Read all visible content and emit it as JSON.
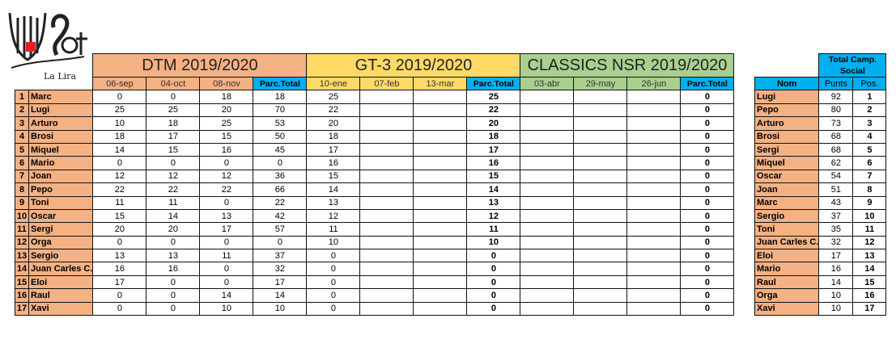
{
  "logo": {
    "text": "Spot",
    "subtitle": "La Lira"
  },
  "colors": {
    "dtm": "#f4b183",
    "gt3": "#ffd966",
    "classics": "#a9d08e",
    "total": "#00b0f0"
  },
  "championships": [
    {
      "title": "DTM 2019/2020",
      "dates": [
        "06-sep",
        "04-oct",
        "08-nov"
      ],
      "total_label": "Parc.Total"
    },
    {
      "title": "GT-3  2019/2020",
      "dates": [
        "10-ene",
        "07-feb",
        "13-mar"
      ],
      "total_label": "Parc.Total"
    },
    {
      "title": "CLASSICS NSR 2019/2020",
      "dates": [
        "03-abr",
        "29-may",
        "26-jun"
      ],
      "total_label": "Parc.Total"
    }
  ],
  "rows": [
    {
      "rank": "1",
      "name": "Marc",
      "dtm": [
        "0",
        "0",
        "18",
        "18"
      ],
      "gt3": [
        "25",
        "",
        "",
        "25"
      ],
      "cl": [
        "",
        "",
        "",
        "0"
      ]
    },
    {
      "rank": "2",
      "name": "Lugi",
      "dtm": [
        "25",
        "25",
        "20",
        "70"
      ],
      "gt3": [
        "22",
        "",
        "",
        "22"
      ],
      "cl": [
        "",
        "",
        "",
        "0"
      ]
    },
    {
      "rank": "3",
      "name": "Arturo",
      "dtm": [
        "10",
        "18",
        "25",
        "53"
      ],
      "gt3": [
        "20",
        "",
        "",
        "20"
      ],
      "cl": [
        "",
        "",
        "",
        "0"
      ]
    },
    {
      "rank": "4",
      "name": "Brosi",
      "dtm": [
        "18",
        "17",
        "15",
        "50"
      ],
      "gt3": [
        "18",
        "",
        "",
        "18"
      ],
      "cl": [
        "",
        "",
        "",
        "0"
      ]
    },
    {
      "rank": "5",
      "name": "Miquel",
      "dtm": [
        "14",
        "15",
        "16",
        "45"
      ],
      "gt3": [
        "17",
        "",
        "",
        "17"
      ],
      "cl": [
        "",
        "",
        "",
        "0"
      ]
    },
    {
      "rank": "6",
      "name": "Mario",
      "dtm": [
        "0",
        "0",
        "0",
        "0"
      ],
      "gt3": [
        "16",
        "",
        "",
        "16"
      ],
      "cl": [
        "",
        "",
        "",
        "0"
      ]
    },
    {
      "rank": "7",
      "name": "Joan",
      "dtm": [
        "12",
        "12",
        "12",
        "36"
      ],
      "gt3": [
        "15",
        "",
        "",
        "15"
      ],
      "cl": [
        "",
        "",
        "",
        "0"
      ]
    },
    {
      "rank": "8",
      "name": "Pepo",
      "dtm": [
        "22",
        "22",
        "22",
        "66"
      ],
      "gt3": [
        "14",
        "",
        "",
        "14"
      ],
      "cl": [
        "",
        "",
        "",
        "0"
      ]
    },
    {
      "rank": "9",
      "name": "Toni",
      "dtm": [
        "11",
        "11",
        "0",
        "22"
      ],
      "gt3": [
        "13",
        "",
        "",
        "13"
      ],
      "cl": [
        "",
        "",
        "",
        "0"
      ]
    },
    {
      "rank": "10",
      "name": "Oscar",
      "dtm": [
        "15",
        "14",
        "13",
        "42"
      ],
      "gt3": [
        "12",
        "",
        "",
        "12"
      ],
      "cl": [
        "",
        "",
        "",
        "0"
      ]
    },
    {
      "rank": "11",
      "name": "Sergi",
      "dtm": [
        "20",
        "20",
        "17",
        "57"
      ],
      "gt3": [
        "11",
        "",
        "",
        "11"
      ],
      "cl": [
        "",
        "",
        "",
        "0"
      ]
    },
    {
      "rank": "12",
      "name": "Orga",
      "dtm": [
        "0",
        "0",
        "0",
        "0"
      ],
      "gt3": [
        "10",
        "",
        "",
        "10"
      ],
      "cl": [
        "",
        "",
        "",
        "0"
      ]
    },
    {
      "rank": "13",
      "name": "Sergio",
      "dtm": [
        "13",
        "13",
        "11",
        "37"
      ],
      "gt3": [
        "0",
        "",
        "",
        "0"
      ],
      "cl": [
        "",
        "",
        "",
        "0"
      ]
    },
    {
      "rank": "14",
      "name": "Juan Carles C.",
      "dtm": [
        "16",
        "16",
        "0",
        "32"
      ],
      "gt3": [
        "0",
        "",
        "",
        "0"
      ],
      "cl": [
        "",
        "",
        "",
        "0"
      ]
    },
    {
      "rank": "15",
      "name": "Eloi",
      "dtm": [
        "17",
        "0",
        "0",
        "17"
      ],
      "gt3": [
        "0",
        "",
        "",
        "0"
      ],
      "cl": [
        "",
        "",
        "",
        "0"
      ]
    },
    {
      "rank": "16",
      "name": "Raul",
      "dtm": [
        "0",
        "0",
        "14",
        "14"
      ],
      "gt3": [
        "0",
        "",
        "",
        "0"
      ],
      "cl": [
        "",
        "",
        "",
        "0"
      ]
    },
    {
      "rank": "17",
      "name": "Xavi",
      "dtm": [
        "0",
        "0",
        "10",
        "10"
      ],
      "gt3": [
        "0",
        "",
        "",
        "0"
      ],
      "cl": [
        "",
        "",
        "",
        "0"
      ]
    }
  ],
  "standings": {
    "title": "Total Camp. Social",
    "headers": [
      "Nom",
      "Punts",
      "Pos."
    ],
    "rows": [
      [
        "Lugi",
        "92",
        "1"
      ],
      [
        "Pepo",
        "80",
        "2"
      ],
      [
        "Arturo",
        "73",
        "3"
      ],
      [
        "Brosi",
        "68",
        "4"
      ],
      [
        "Sergi",
        "68",
        "5"
      ],
      [
        "Miquel",
        "62",
        "6"
      ],
      [
        "Oscar",
        "54",
        "7"
      ],
      [
        "Joan",
        "51",
        "8"
      ],
      [
        "Marc",
        "43",
        "9"
      ],
      [
        "Sergio",
        "37",
        "10"
      ],
      [
        "Toni",
        "35",
        "11"
      ],
      [
        "Juan Carles C.",
        "32",
        "12"
      ],
      [
        "Eloi",
        "17",
        "13"
      ],
      [
        "Mario",
        "16",
        "14"
      ],
      [
        "Raul",
        "14",
        "15"
      ],
      [
        "Orga",
        "10",
        "16"
      ],
      [
        "Xavi",
        "10",
        "17"
      ]
    ]
  }
}
